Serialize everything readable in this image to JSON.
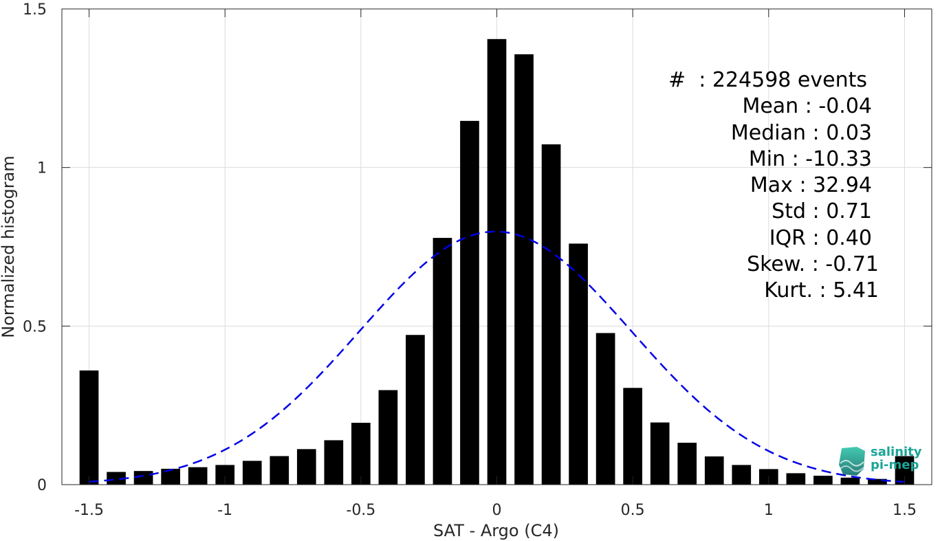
{
  "chart_data": {
    "type": "bar",
    "xlabel": "SAT - Argo (C4)",
    "ylabel": "Normalized histogram",
    "xlim": [
      -1.6,
      1.6
    ],
    "ylim": [
      0,
      1.5
    ],
    "xticks": [
      -1.5,
      -1,
      -0.5,
      0,
      0.5,
      1,
      1.5
    ],
    "xtick_labels": [
      "-1.5",
      "-1",
      "-0.5",
      "0",
      "0.5",
      "1",
      "1.5"
    ],
    "yticks": [
      0,
      0.5,
      1,
      1.5
    ],
    "ytick_labels": [
      "0",
      "0.5",
      "1",
      "1.5"
    ],
    "grid": true,
    "bar_color": "#000000",
    "bins": [
      {
        "x": -1.5,
        "y": 0.36
      },
      {
        "x": -1.4,
        "y": 0.04
      },
      {
        "x": -1.3,
        "y": 0.043
      },
      {
        "x": -1.2,
        "y": 0.05
      },
      {
        "x": -1.1,
        "y": 0.055
      },
      {
        "x": -1.0,
        "y": 0.062
      },
      {
        "x": -0.9,
        "y": 0.075
      },
      {
        "x": -0.8,
        "y": 0.09
      },
      {
        "x": -0.7,
        "y": 0.112
      },
      {
        "x": -0.6,
        "y": 0.14
      },
      {
        "x": -0.5,
        "y": 0.195
      },
      {
        "x": -0.4,
        "y": 0.298
      },
      {
        "x": -0.3,
        "y": 0.472
      },
      {
        "x": -0.2,
        "y": 0.778
      },
      {
        "x": -0.1,
        "y": 1.147
      },
      {
        "x": 0.0,
        "y": 1.405
      },
      {
        "x": 0.1,
        "y": 1.357
      },
      {
        "x": 0.2,
        "y": 1.073
      },
      {
        "x": 0.3,
        "y": 0.76
      },
      {
        "x": 0.4,
        "y": 0.478
      },
      {
        "x": 0.5,
        "y": 0.305
      },
      {
        "x": 0.6,
        "y": 0.196
      },
      {
        "x": 0.7,
        "y": 0.132
      },
      {
        "x": 0.8,
        "y": 0.089
      },
      {
        "x": 0.9,
        "y": 0.062
      },
      {
        "x": 1.0,
        "y": 0.049
      },
      {
        "x": 1.1,
        "y": 0.036
      },
      {
        "x": 1.2,
        "y": 0.028
      },
      {
        "x": 1.3,
        "y": 0.022
      },
      {
        "x": 1.4,
        "y": 0.018
      },
      {
        "x": 1.5,
        "y": 0.09
      }
    ],
    "fit_curve": {
      "type": "gaussian",
      "mean": -0.005,
      "sigma": 0.5,
      "peak": 0.798,
      "x_range": [
        -1.5,
        1.5
      ],
      "color": "#0000e6",
      "style": "dashed"
    }
  },
  "stats": {
    "lines": [
      "#  : 224598 events",
      "Mean : -0.04",
      "Median : 0.03",
      "Min : -10.33",
      "Max : 32.94",
      "Std : 0.71",
      "IQR : 0.40",
      "Skew. : -0.71",
      "Kurt. : 5.41"
    ]
  },
  "logo": {
    "line1": "salinity",
    "line2": "pi-mep",
    "icon": "salinity-pimep-logo-icon",
    "color": "#1aa597"
  }
}
